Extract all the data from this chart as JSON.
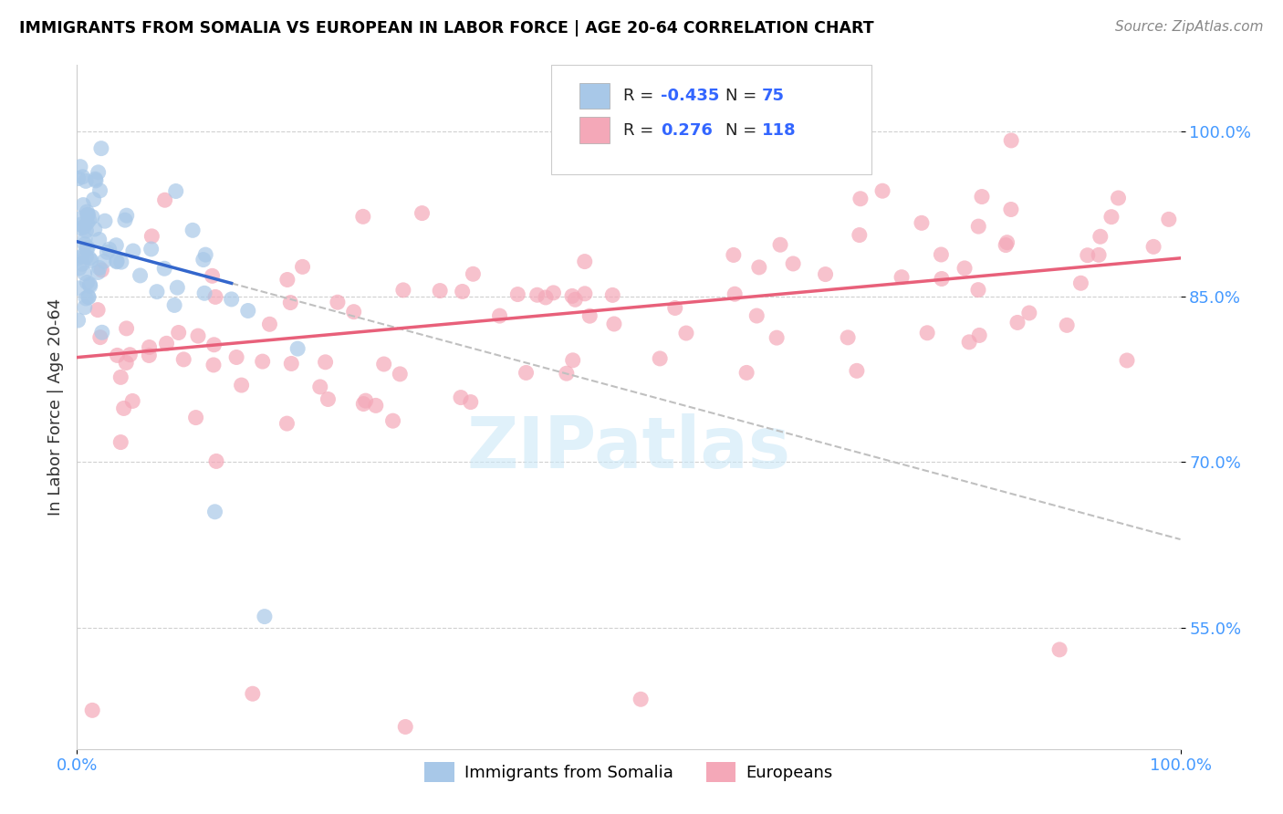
{
  "title": "IMMIGRANTS FROM SOMALIA VS EUROPEAN IN LABOR FORCE | AGE 20-64 CORRELATION CHART",
  "source": "Source: ZipAtlas.com",
  "ylabel": "In Labor Force | Age 20-64",
  "xlim": [
    0.0,
    100.0
  ],
  "ylim": [
    44.0,
    106.0
  ],
  "yticks": [
    55.0,
    70.0,
    85.0,
    100.0
  ],
  "somalia_R": -0.435,
  "somalia_N": 75,
  "european_R": 0.276,
  "european_N": 118,
  "somalia_color": "#a8c8e8",
  "european_color": "#f4a8b8",
  "somalia_line_color": "#3366cc",
  "european_line_color": "#e8607a",
  "dashed_line_color": "#c0c0c0",
  "watermark": "ZIPatlas",
  "legend_color_somalia": "#a8c8e8",
  "legend_color_european": "#f4a8b8",
  "tick_color": "#4499ff",
  "somalia_line_x0": 0.0,
  "somalia_line_x1": 100.0,
  "somalia_line_y0": 90.0,
  "somalia_line_y1": 63.0,
  "somalia_solid_x0": 0.0,
  "somalia_solid_x1": 14.0,
  "european_line_x0": 0.0,
  "european_line_x1": 100.0,
  "european_line_y0": 79.5,
  "european_line_y1": 88.5
}
